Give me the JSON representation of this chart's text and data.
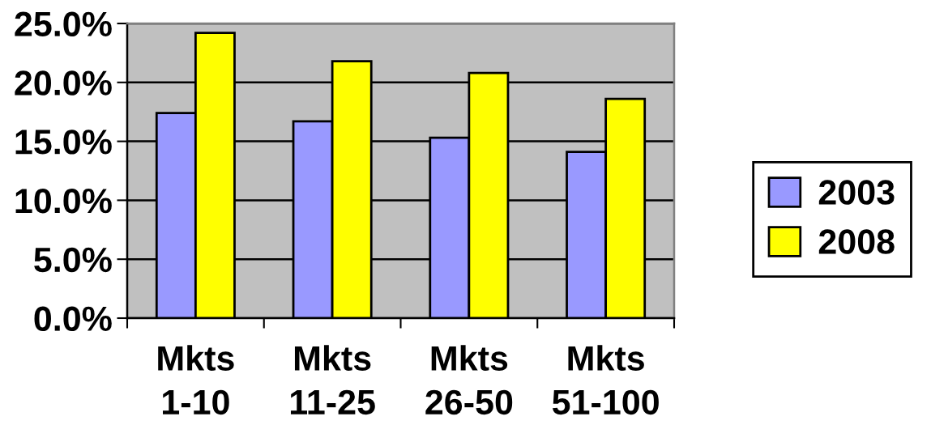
{
  "chart_data": {
    "type": "bar",
    "categories": [
      "Mkts\n1-10",
      "Mkts\n11-25",
      "Mkts\n26-50",
      "Mkts\n51-100"
    ],
    "series": [
      {
        "name": "2003",
        "color": "#9999ff",
        "values": [
          17.4,
          16.7,
          15.3,
          14.1
        ]
      },
      {
        "name": "2008",
        "color": "#ffff00",
        "values": [
          24.2,
          21.8,
          20.8,
          18.6
        ]
      }
    ],
    "ylim": [
      0,
      25
    ],
    "yticks": [
      {
        "value": 0,
        "label": "0.0%"
      },
      {
        "value": 5,
        "label": "5.0%"
      },
      {
        "value": 10,
        "label": "10.0%"
      },
      {
        "value": 15,
        "label": "15.0%"
      },
      {
        "value": 20,
        "label": "20.0%"
      },
      {
        "value": 25,
        "label": "25.0%"
      }
    ],
    "grid": "y",
    "legend": "right"
  }
}
